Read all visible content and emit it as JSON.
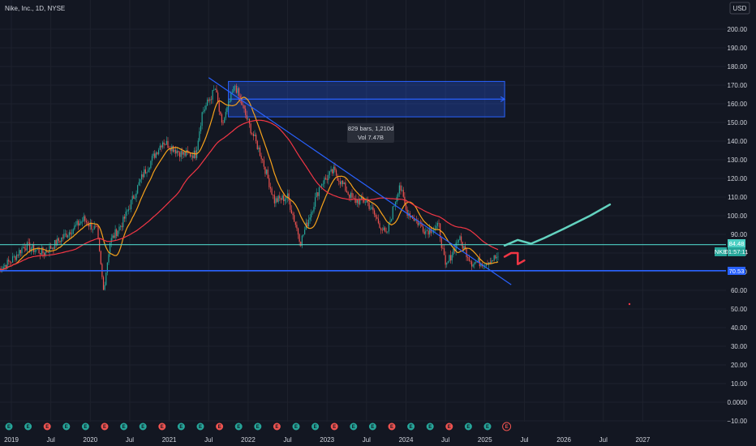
{
  "header": {
    "symbol_title": "Nike, Inc., 1D, NYSE",
    "currency": "USD"
  },
  "colors": {
    "background": "#131722",
    "up": "#26a69a",
    "down": "#ef5350",
    "trend_line": "#2962ff",
    "sma_fast": "#f7a21b",
    "sma_slow": "#f23645",
    "resistance": "#4dd0c4",
    "projection_up": "#63d3c0",
    "projection_down": "#f23645",
    "measure_box": "#2962ff"
  },
  "price_tags": {
    "resistance": "84.48",
    "ticker": "NKE",
    "countdown": "01:57:11",
    "support": "70.53"
  },
  "measure_tooltip": {
    "line1": "829 bars, 1,210d",
    "line2": "Vol 7.47B"
  },
  "chart_data": {
    "type": "candlestick",
    "y_axis_labels": [
      "200.00",
      "190.00",
      "180.00",
      "170.00",
      "160.00",
      "150.00",
      "140.00",
      "130.00",
      "120.00",
      "110.00",
      "100.00",
      "90.00",
      "80.00",
      "70.00",
      "60.00",
      "50.00",
      "40.00",
      "30.00",
      "20.00",
      "10.00",
      "0.0000",
      "−10.00"
    ],
    "ylim": [
      -10,
      200
    ],
    "x_axis_labels": [
      "2019",
      "Jul",
      "2020",
      "Jul",
      "2021",
      "Jul",
      "2022",
      "Jul",
      "2023",
      "Jul",
      "2024",
      "Jul",
      "2025",
      "Jul",
      "2026",
      "Jul",
      "2027"
    ],
    "price_path": [
      {
        "date": "2018-11",
        "price": 71
      },
      {
        "date": "2019-01",
        "price": 76
      },
      {
        "date": "2019-03",
        "price": 84
      },
      {
        "date": "2019-06",
        "price": 80
      },
      {
        "date": "2019-09",
        "price": 89
      },
      {
        "date": "2019-12",
        "price": 98
      },
      {
        "date": "2020-02",
        "price": 92
      },
      {
        "date": "2020-03",
        "price": 60
      },
      {
        "date": "2020-04",
        "price": 86
      },
      {
        "date": "2020-06",
        "price": 97
      },
      {
        "date": "2020-09",
        "price": 122
      },
      {
        "date": "2020-12",
        "price": 140
      },
      {
        "date": "2021-03",
        "price": 133
      },
      {
        "date": "2021-05",
        "price": 133
      },
      {
        "date": "2021-06",
        "price": 155
      },
      {
        "date": "2021-08",
        "price": 168
      },
      {
        "date": "2021-09",
        "price": 148
      },
      {
        "date": "2021-11",
        "price": 170
      },
      {
        "date": "2022-01",
        "price": 150
      },
      {
        "date": "2022-03",
        "price": 132
      },
      {
        "date": "2022-05",
        "price": 108
      },
      {
        "date": "2022-07",
        "price": 110
      },
      {
        "date": "2022-09",
        "price": 86
      },
      {
        "date": "2022-12",
        "price": 117
      },
      {
        "date": "2023-02",
        "price": 124
      },
      {
        "date": "2023-05",
        "price": 108
      },
      {
        "date": "2023-07",
        "price": 108
      },
      {
        "date": "2023-10",
        "price": 89
      },
      {
        "date": "2023-12",
        "price": 117
      },
      {
        "date": "2024-01",
        "price": 103
      },
      {
        "date": "2024-04",
        "price": 92
      },
      {
        "date": "2024-06",
        "price": 94
      },
      {
        "date": "2024-07",
        "price": 72
      },
      {
        "date": "2024-09",
        "price": 88
      },
      {
        "date": "2024-11",
        "price": 75
      },
      {
        "date": "2025-01",
        "price": 75
      },
      {
        "date": "2025-03",
        "price": 78
      }
    ],
    "trendline": [
      {
        "date": "2021-07",
        "price": 174
      },
      {
        "date": "2025-05",
        "price": 63
      }
    ],
    "horizontal_levels": [
      84.48,
      70.53
    ],
    "measure_range": {
      "start": "2021-10",
      "end": "2025-04",
      "top": 172,
      "bottom": 153
    },
    "projection_up": [
      {
        "date": "2025-04",
        "price": 84
      },
      {
        "date": "2025-06",
        "price": 87
      },
      {
        "date": "2025-08",
        "price": 85
      },
      {
        "date": "2025-10",
        "price": 88
      },
      {
        "date": "2026-01",
        "price": 93
      },
      {
        "date": "2026-05",
        "price": 100
      },
      {
        "date": "2026-08",
        "price": 106
      }
    ],
    "projection_down": [
      {
        "date": "2025-04",
        "price": 78
      },
      {
        "date": "2025-05",
        "price": 80
      },
      {
        "date": "2025-06",
        "price": 80
      },
      {
        "date": "2025-06",
        "price": 74
      },
      {
        "date": "2025-07",
        "price": 76
      }
    ],
    "events": [
      "E",
      "E",
      "E",
      "E",
      "E",
      "E",
      "E",
      "E",
      "E",
      "E",
      "E",
      "E",
      "E",
      "E",
      "E",
      "E",
      "E",
      "E",
      "E",
      "E",
      "E",
      "E",
      "E",
      "E",
      "E",
      "E",
      "E"
    ]
  }
}
